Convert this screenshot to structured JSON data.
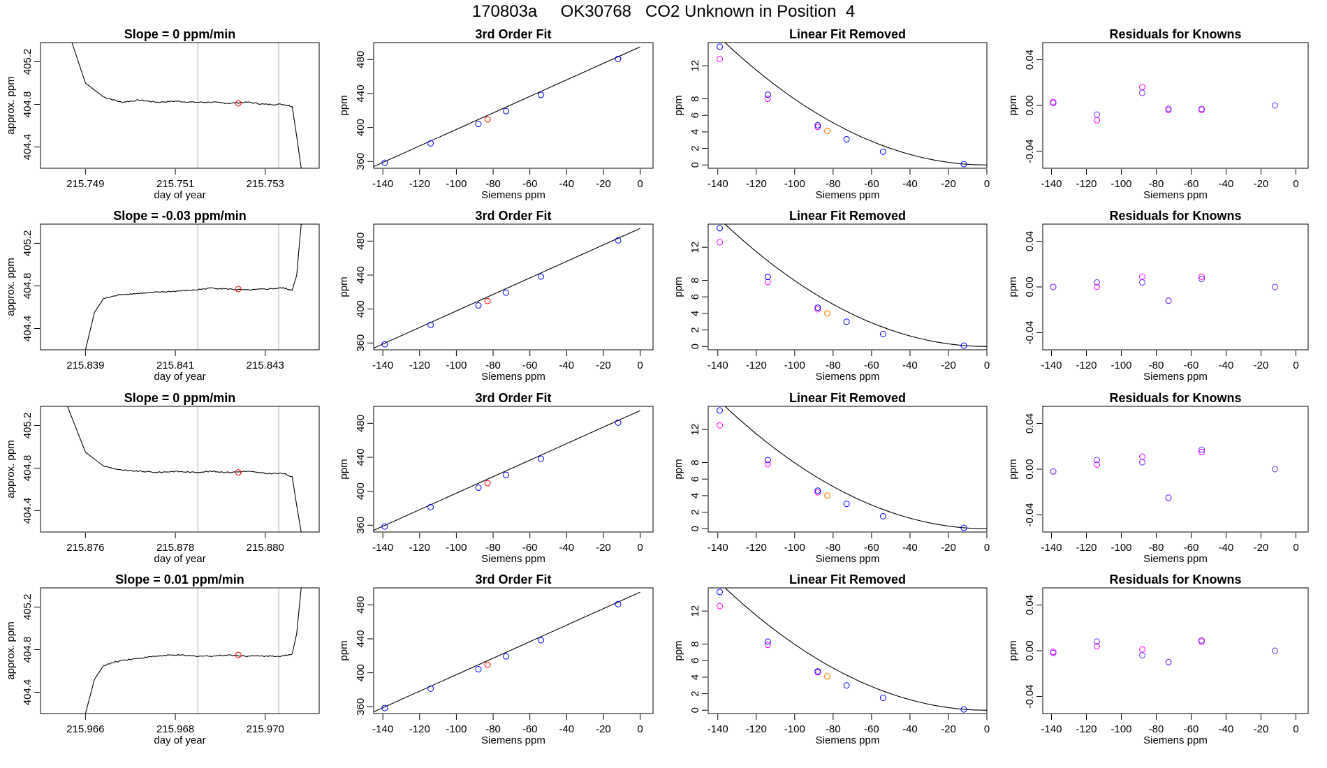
{
  "page": {
    "title": "170803a     OK30768   CO2 Unknown in Position  4"
  },
  "colors": {
    "line": "#000000",
    "known": "#0000ff",
    "unknown": "#ff0000",
    "replicate": "#ff00ff",
    "unknown_fill_point": "#ff8000",
    "window": "#b0b0b0"
  },
  "chart_data": [
    {
      "type": "line",
      "panel": "timeseries",
      "row": 0,
      "title": "Slope =  0  ppm/min",
      "xlabel": "day of year",
      "ylabel": "approx. ppm",
      "xlim": [
        215.748,
        215.7542
      ],
      "ylim": [
        404.2,
        405.38
      ],
      "xticks": [
        215.749,
        215.751,
        215.753
      ],
      "xtick_labels": [
        "215.749",
        "215.751",
        "215.753"
      ],
      "yticks": [
        404.4,
        404.8,
        405.2
      ],
      "ytick_labels": [
        "404.4",
        "404.8",
        "405.2"
      ],
      "window_x": [
        215.7515,
        215.7533
      ],
      "x": [
        215.7487,
        215.749,
        215.7494,
        215.7498,
        215.7502,
        215.7506,
        215.751,
        215.7514,
        215.7518,
        215.7522,
        215.7526,
        215.753,
        215.7534,
        215.7536,
        215.7537,
        215.7538
      ],
      "y": [
        405.38,
        405.0,
        404.87,
        404.82,
        404.84,
        404.82,
        404.83,
        404.82,
        404.82,
        404.81,
        404.82,
        404.8,
        404.8,
        404.78,
        404.5,
        404.2
      ],
      "unknown_point": [
        215.7524,
        404.81
      ]
    },
    {
      "type": "line",
      "panel": "timeseries",
      "row": 1,
      "title": "Slope =  -0.03  ppm/min",
      "xlabel": "day of year",
      "ylabel": "approx. ppm",
      "xlim": [
        215.838,
        215.8442
      ],
      "ylim": [
        404.2,
        405.38
      ],
      "xticks": [
        215.839,
        215.841,
        215.843
      ],
      "xtick_labels": [
        "215.839",
        "215.841",
        "215.843"
      ],
      "yticks": [
        404.4,
        404.8,
        405.2
      ],
      "ytick_labels": [
        "404.4",
        "404.8",
        "405.2"
      ],
      "window_x": [
        215.8415,
        215.8433
      ],
      "x": [
        215.839,
        215.8392,
        215.8394,
        215.8398,
        215.8402,
        215.8406,
        215.841,
        215.8414,
        215.8418,
        215.8422,
        215.8426,
        215.843,
        215.8434,
        215.8436,
        215.8437,
        215.8438
      ],
      "y": [
        404.2,
        404.55,
        404.68,
        404.72,
        404.73,
        404.74,
        404.75,
        404.76,
        404.78,
        404.77,
        404.76,
        404.77,
        404.78,
        404.76,
        404.9,
        405.38
      ],
      "unknown_point": [
        215.8424,
        404.77
      ]
    },
    {
      "type": "line",
      "panel": "timeseries",
      "row": 2,
      "title": "Slope =  0  ppm/min",
      "xlabel": "day of year",
      "ylabel": "approx. ppm",
      "xlim": [
        215.875,
        215.8812
      ],
      "ylim": [
        404.2,
        405.38
      ],
      "xticks": [
        215.876,
        215.878,
        215.88
      ],
      "xtick_labels": [
        "215.876",
        "215.878",
        "215.880"
      ],
      "yticks": [
        404.4,
        404.8,
        405.2
      ],
      "ytick_labels": [
        "404.4",
        "404.8",
        "405.2"
      ],
      "window_x": [
        215.8785,
        215.8803
      ],
      "x": [
        215.8756,
        215.876,
        215.8764,
        215.8768,
        215.8772,
        215.8776,
        215.878,
        215.8784,
        215.8788,
        215.8792,
        215.8796,
        215.88,
        215.8804,
        215.8806,
        215.8807,
        215.8808
      ],
      "y": [
        405.38,
        404.95,
        404.82,
        404.78,
        404.77,
        404.76,
        404.77,
        404.76,
        404.77,
        404.76,
        404.77,
        404.75,
        404.75,
        404.72,
        404.45,
        404.2
      ],
      "unknown_point": [
        215.8794,
        404.76
      ]
    },
    {
      "type": "line",
      "panel": "timeseries",
      "row": 3,
      "title": "Slope =  0.01  ppm/min",
      "xlabel": "day of year",
      "ylabel": "approx. ppm",
      "xlim": [
        215.965,
        215.9712
      ],
      "ylim": [
        404.2,
        405.38
      ],
      "xticks": [
        215.966,
        215.968,
        215.97
      ],
      "xtick_labels": [
        "215.966",
        "215.968",
        "215.970"
      ],
      "yticks": [
        404.4,
        404.8,
        405.2
      ],
      "ytick_labels": [
        "404.4",
        "404.8",
        "405.2"
      ],
      "window_x": [
        215.9685,
        215.9703
      ],
      "x": [
        215.966,
        215.9662,
        215.9664,
        215.9668,
        215.9672,
        215.9676,
        215.968,
        215.9684,
        215.9688,
        215.9692,
        215.9696,
        215.97,
        215.9704,
        215.9706,
        215.9707,
        215.9708
      ],
      "y": [
        404.2,
        404.52,
        404.65,
        404.7,
        404.72,
        404.74,
        404.75,
        404.74,
        404.74,
        404.75,
        404.74,
        404.74,
        404.74,
        404.76,
        404.95,
        405.38
      ],
      "unknown_point": [
        215.9694,
        404.75
      ]
    },
    {
      "type": "scatter",
      "panel": "fit",
      "row": 0,
      "title": "3rd Order Fit",
      "xlabel": "Siemens ppm",
      "ylabel": "ppm",
      "xlim": [
        -145,
        7
      ],
      "ylim": [
        352,
        500
      ],
      "xticks": [
        -140,
        -120,
        -100,
        -80,
        -60,
        -40,
        -20,
        0
      ],
      "xtick_labels": [
        "-140",
        "-120",
        "-100",
        "-80",
        "-60",
        "-40",
        "-20",
        "0"
      ],
      "yticks": [
        360,
        400,
        440,
        480
      ],
      "ytick_labels": [
        "360",
        "400",
        "440",
        "480"
      ],
      "curve": [
        [
          -145,
          354.0
        ],
        [
          0,
          495.0
        ]
      ],
      "known_x": [
        -139,
        -114,
        -88,
        -73,
        -54,
        -12
      ],
      "known_y": [
        358.5,
        381.3,
        404.2,
        419.3,
        438.3,
        480.8
      ],
      "unknown": [
        -83,
        409.5
      ]
    },
    {
      "type": "scatter",
      "panel": "fit",
      "row": 1,
      "title": "3rd Order Fit",
      "xlabel": "Siemens ppm",
      "ylabel": "ppm",
      "xlim": [
        -145,
        7
      ],
      "ylim": [
        352,
        500
      ],
      "xticks": [
        -140,
        -120,
        -100,
        -80,
        -60,
        -40,
        -20,
        0
      ],
      "xtick_labels": [
        "-140",
        "-120",
        "-100",
        "-80",
        "-60",
        "-40",
        "-20",
        "0"
      ],
      "yticks": [
        360,
        400,
        440,
        480
      ],
      "ytick_labels": [
        "360",
        "400",
        "440",
        "480"
      ],
      "curve": [
        [
          -145,
          354.0
        ],
        [
          0,
          495.0
        ]
      ],
      "known_x": [
        -139,
        -114,
        -88,
        -73,
        -54,
        -12
      ],
      "known_y": [
        358.5,
        381.3,
        404.2,
        419.3,
        438.3,
        480.8
      ],
      "unknown": [
        -83,
        409.5
      ]
    },
    {
      "type": "scatter",
      "panel": "fit",
      "row": 2,
      "title": "3rd Order Fit",
      "xlabel": "Siemens ppm",
      "ylabel": "ppm",
      "xlim": [
        -145,
        7
      ],
      "ylim": [
        352,
        500
      ],
      "xticks": [
        -140,
        -120,
        -100,
        -80,
        -60,
        -40,
        -20,
        0
      ],
      "xtick_labels": [
        "-140",
        "-120",
        "-100",
        "-80",
        "-60",
        "-40",
        "-20",
        "0"
      ],
      "yticks": [
        360,
        400,
        440,
        480
      ],
      "ytick_labels": [
        "360",
        "400",
        "440",
        "480"
      ],
      "curve": [
        [
          -145,
          354.0
        ],
        [
          0,
          495.0
        ]
      ],
      "known_x": [
        -139,
        -114,
        -88,
        -73,
        -54,
        -12
      ],
      "known_y": [
        358.5,
        381.3,
        404.2,
        419.3,
        438.3,
        480.8
      ],
      "unknown": [
        -83,
        409.5
      ]
    },
    {
      "type": "scatter",
      "panel": "fit",
      "row": 3,
      "title": "3rd Order Fit",
      "xlabel": "Siemens ppm",
      "ylabel": "ppm",
      "xlim": [
        -145,
        7
      ],
      "ylim": [
        352,
        500
      ],
      "xticks": [
        -140,
        -120,
        -100,
        -80,
        -60,
        -40,
        -20,
        0
      ],
      "xtick_labels": [
        "-140",
        "-120",
        "-100",
        "-80",
        "-60",
        "-40",
        "-20",
        "0"
      ],
      "yticks": [
        360,
        400,
        440,
        480
      ],
      "ytick_labels": [
        "360",
        "400",
        "440",
        "480"
      ],
      "curve": [
        [
          -145,
          354.0
        ],
        [
          0,
          495.0
        ]
      ],
      "known_x": [
        -139,
        -114,
        -88,
        -73,
        -54,
        -12
      ],
      "known_y": [
        358.5,
        381.3,
        404.2,
        419.3,
        438.3,
        480.8
      ],
      "unknown": [
        -83,
        409.5
      ]
    },
    {
      "type": "scatter",
      "panel": "linear_removed",
      "row": 0,
      "title": "Linear Fit Removed",
      "xlabel": "Siemens ppm",
      "ylabel": "ppm",
      "xlim": [
        -145,
        0
      ],
      "ylim": [
        -0.4,
        14.8
      ],
      "xticks": [
        -140,
        -120,
        -100,
        -80,
        -60,
        -40,
        -20,
        0
      ],
      "xtick_labels": [
        "-140",
        "-120",
        "-100",
        "-80",
        "-60",
        "-40",
        "-20",
        "0"
      ],
      "yticks": [
        0,
        2,
        4,
        6,
        8,
        12
      ],
      "ytick_labels": [
        "0",
        "2",
        "4",
        "6",
        "8",
        "12"
      ],
      "curve_coef": 0.000797,
      "known_x": [
        -139,
        -114,
        -88,
        -73,
        -54,
        -12
      ],
      "known_y": [
        14.3,
        8.5,
        4.8,
        3.1,
        1.6,
        0.1
      ],
      "replicate_x": [
        -139,
        -114,
        -88
      ],
      "replicate_y": [
        12.8,
        8.0,
        4.6
      ],
      "unknown": [
        -83,
        4.1
      ]
    },
    {
      "type": "scatter",
      "panel": "linear_removed",
      "row": 1,
      "title": "Linear Fit Removed",
      "xlabel": "Siemens ppm",
      "ylabel": "ppm",
      "xlim": [
        -145,
        0
      ],
      "ylim": [
        -0.4,
        14.8
      ],
      "xticks": [
        -140,
        -120,
        -100,
        -80,
        -60,
        -40,
        -20,
        0
      ],
      "xtick_labels": [
        "-140",
        "-120",
        "-100",
        "-80",
        "-60",
        "-40",
        "-20",
        "0"
      ],
      "yticks": [
        0,
        2,
        4,
        6,
        8,
        12
      ],
      "ytick_labels": [
        "0",
        "2",
        "4",
        "6",
        "8",
        "12"
      ],
      "curve_coef": 0.000797,
      "known_x": [
        -139,
        -114,
        -88,
        -73,
        -54,
        -12
      ],
      "known_y": [
        14.3,
        8.4,
        4.7,
        3.0,
        1.5,
        0.1
      ],
      "replicate_x": [
        -139,
        -114,
        -88
      ],
      "replicate_y": [
        12.6,
        7.8,
        4.5
      ],
      "unknown": [
        -83,
        4.0
      ]
    },
    {
      "type": "scatter",
      "panel": "linear_removed",
      "row": 2,
      "title": "Linear Fit Removed",
      "xlabel": "Siemens ppm",
      "ylabel": "ppm",
      "xlim": [
        -145,
        0
      ],
      "ylim": [
        -0.4,
        14.8
      ],
      "xticks": [
        -140,
        -120,
        -100,
        -80,
        -60,
        -40,
        -20,
        0
      ],
      "xtick_labels": [
        "-140",
        "-120",
        "-100",
        "-80",
        "-60",
        "-40",
        "-20",
        "0"
      ],
      "yticks": [
        0,
        2,
        4,
        6,
        8,
        12
      ],
      "ytick_labels": [
        "0",
        "2",
        "4",
        "6",
        "8",
        "12"
      ],
      "curve_coef": 0.000797,
      "known_x": [
        -139,
        -114,
        -88,
        -73,
        -54,
        -12
      ],
      "known_y": [
        14.3,
        8.3,
        4.6,
        3.0,
        1.5,
        0.1
      ],
      "replicate_x": [
        -139,
        -114,
        -88
      ],
      "replicate_y": [
        12.5,
        7.8,
        4.4
      ],
      "unknown": [
        -83,
        4.0
      ]
    },
    {
      "type": "scatter",
      "panel": "linear_removed",
      "row": 3,
      "title": "Linear Fit Removed",
      "xlabel": "Siemens ppm",
      "ylabel": "ppm",
      "xlim": [
        -145,
        0
      ],
      "ylim": [
        -0.4,
        14.8
      ],
      "xticks": [
        -140,
        -120,
        -100,
        -80,
        -60,
        -40,
        -20,
        0
      ],
      "xtick_labels": [
        "-140",
        "-120",
        "-100",
        "-80",
        "-60",
        "-40",
        "-20",
        "0"
      ],
      "yticks": [
        0,
        2,
        4,
        6,
        8,
        12
      ],
      "ytick_labels": [
        "0",
        "2",
        "4",
        "6",
        "8",
        "12"
      ],
      "curve_coef": 0.000797,
      "known_x": [
        -139,
        -114,
        -88,
        -73,
        -54,
        -12
      ],
      "known_y": [
        14.3,
        8.3,
        4.7,
        3.0,
        1.5,
        0.1
      ],
      "replicate_x": [
        -139,
        -114,
        -88
      ],
      "replicate_y": [
        12.6,
        7.9,
        4.6
      ],
      "unknown": [
        -83,
        4.1
      ]
    },
    {
      "type": "scatter",
      "panel": "residuals",
      "row": 0,
      "title": "Residuals for Knowns",
      "xlabel": "Siemens ppm",
      "ylabel": "ppm",
      "xlim": [
        -145,
        7
      ],
      "ylim": [
        -0.055,
        0.055
      ],
      "xticks": [
        -140,
        -120,
        -100,
        -80,
        -60,
        -40,
        -20,
        0
      ],
      "xtick_labels": [
        "-140",
        "-120",
        "-100",
        "-80",
        "-60",
        "-40",
        "-20",
        "0"
      ],
      "yticks": [
        -0.04,
        0.0,
        0.04
      ],
      "ytick_labels": [
        "-0.04",
        "0.00",
        "0.04"
      ],
      "known_x": [
        -139,
        -114,
        -88,
        -73,
        -54,
        -12
      ],
      "known_y": [
        0.002,
        -0.008,
        0.011,
        -0.003,
        -0.003,
        0.0
      ],
      "replicate_x": [
        -139,
        -114,
        -88,
        -73,
        -54
      ],
      "replicate_y": [
        0.003,
        -0.013,
        0.016,
        -0.004,
        -0.004
      ]
    },
    {
      "type": "scatter",
      "panel": "residuals",
      "row": 1,
      "title": "Residuals for Knowns",
      "xlabel": "Siemens ppm",
      "ylabel": "ppm",
      "xlim": [
        -145,
        7
      ],
      "ylim": [
        -0.055,
        0.055
      ],
      "xticks": [
        -140,
        -120,
        -100,
        -80,
        -60,
        -40,
        -20,
        0
      ],
      "xtick_labels": [
        "-140",
        "-120",
        "-100",
        "-80",
        "-60",
        "-40",
        "-20",
        "0"
      ],
      "yticks": [
        -0.04,
        0.0,
        0.04
      ],
      "ytick_labels": [
        "-0.04",
        "0.00",
        "0.04"
      ],
      "known_x": [
        -139,
        -114,
        -88,
        -73,
        -54,
        -12
      ],
      "known_y": [
        0.0,
        0.004,
        0.004,
        -0.012,
        0.007,
        0.0
      ],
      "replicate_x": [
        -139,
        -114,
        -88,
        -73,
        -54
      ],
      "replicate_y": [
        0.0,
        0.0,
        0.009,
        -0.012,
        0.009
      ]
    },
    {
      "type": "scatter",
      "panel": "residuals",
      "row": 2,
      "title": "Residuals for Knowns",
      "xlabel": "Siemens ppm",
      "ylabel": "ppm",
      "xlim": [
        -145,
        7
      ],
      "ylim": [
        -0.055,
        0.055
      ],
      "xticks": [
        -140,
        -120,
        -100,
        -80,
        -60,
        -40,
        -20,
        0
      ],
      "xtick_labels": [
        "-140",
        "-120",
        "-100",
        "-80",
        "-60",
        "-40",
        "-20",
        "0"
      ],
      "yticks": [
        -0.04,
        0.0,
        0.04
      ],
      "ytick_labels": [
        "-0.04",
        "0.00",
        "0.04"
      ],
      "known_x": [
        -139,
        -114,
        -88,
        -73,
        -54,
        -12
      ],
      "known_y": [
        -0.002,
        0.008,
        0.006,
        -0.025,
        0.017,
        0.0
      ],
      "replicate_x": [
        -139,
        -114,
        -88,
        -73,
        -54
      ],
      "replicate_y": [
        -0.002,
        0.004,
        0.011,
        -0.025,
        0.015
      ]
    },
    {
      "type": "scatter",
      "panel": "residuals",
      "row": 3,
      "title": "Residuals for Knowns",
      "xlabel": "Siemens ppm",
      "ylabel": "ppm",
      "xlim": [
        -145,
        7
      ],
      "ylim": [
        -0.055,
        0.055
      ],
      "xticks": [
        -140,
        -120,
        -100,
        -80,
        -60,
        -40,
        -20,
        0
      ],
      "xtick_labels": [
        "-140",
        "-120",
        "-100",
        "-80",
        "-60",
        "-40",
        "-20",
        "0"
      ],
      "yticks": [
        -0.04,
        0.0,
        0.04
      ],
      "ytick_labels": [
        "-0.04",
        "0.00",
        "0.04"
      ],
      "known_x": [
        -139,
        -114,
        -88,
        -73,
        -54,
        -12
      ],
      "known_y": [
        -0.002,
        0.008,
        -0.004,
        -0.01,
        0.009,
        0.0
      ],
      "replicate_x": [
        -139,
        -114,
        -88,
        -73,
        -54
      ],
      "replicate_y": [
        -0.001,
        0.004,
        0.001,
        -0.01,
        0.008
      ]
    }
  ]
}
